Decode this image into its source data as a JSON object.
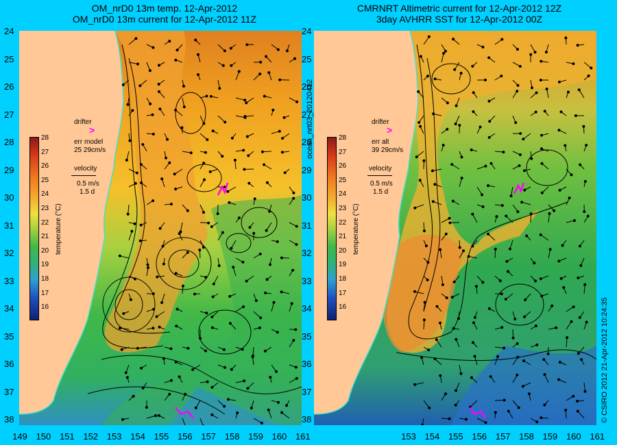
{
  "left": {
    "title_line1": "OM_nrD0 13m temp. 12-Apr-2012",
    "title_line2": "OM_nrD0 13m current for 12-Apr-2012 11Z",
    "drifter_label": "drifter",
    "err_label": "err model",
    "err_value": "25 29cm/s",
    "velocity_label": "velocity",
    "velocity_scale": "0.5 m/s",
    "velocity_time": "1.5 d"
  },
  "right": {
    "title_line1": "CMRNRT Altimetric current for 12-Apr-2012 12Z",
    "title_line2": "3day AVHRR SST for 12-Apr-2012 00Z",
    "drifter_label": "drifter",
    "err_label": "err alt",
    "err_value": "39 29cm/s",
    "velocity_label": "velocity",
    "velocity_scale": "0.5 m/s",
    "velocity_time": "1.5 d"
  },
  "y_labels": [
    "24",
    "25",
    "26",
    "27",
    "28",
    "29",
    "30",
    "31",
    "32",
    "33",
    "34",
    "35",
    "36",
    "37",
    "38"
  ],
  "x_labels_left": [
    "149",
    "150",
    "151",
    "152",
    "153",
    "154",
    "155",
    "156",
    "157",
    "158",
    "159",
    "160",
    "161"
  ],
  "x_labels_right": [
    "153",
    "154",
    "155",
    "156",
    "157",
    "158",
    "159",
    "160",
    "161"
  ],
  "colorbar_ticks": [
    "28",
    "27",
    "26",
    "25",
    "24",
    "23",
    "22",
    "21",
    "20",
    "19",
    "18",
    "17",
    "16"
  ],
  "colorbar_title": "temperature (°C)",
  "side_label": "ocean_nrt03_20120412",
  "credit": "© CSIRO 2012   21-Apr-2012 10:24:35",
  "colors": {
    "background": "#00d0ff",
    "land": "#ffc896",
    "drifter": "#ff00ff",
    "coast": "#40e0d0"
  }
}
